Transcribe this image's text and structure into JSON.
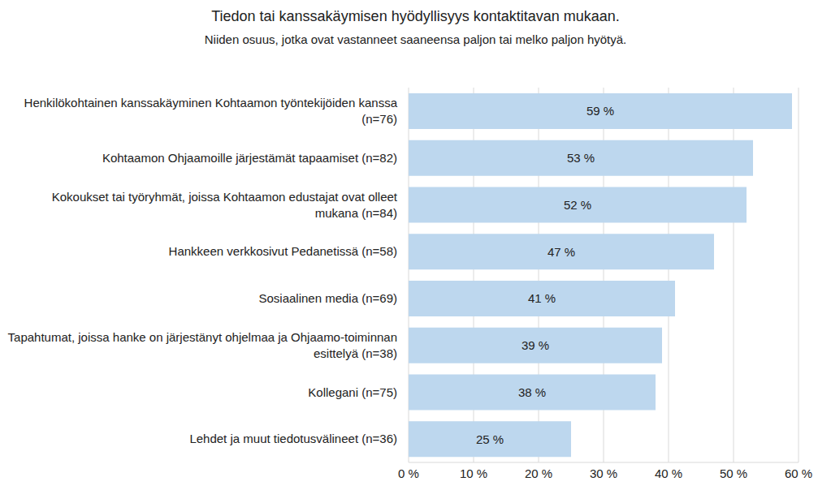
{
  "chart_data": {
    "type": "bar",
    "orientation": "horizontal",
    "title": "Tiedon tai kanssakäymisen hyödyllisyys kontaktitavan mukaan.",
    "subtitle": "Niiden osuus, jotka ovat vastanneet saaneensa paljon tai melko paljon hyötyä.",
    "categories": [
      "Henkilökohtainen kanssakäyminen Kohtaamon työntekijöiden kanssa (n=76)",
      "Kohtaamon Ohjaamoille järjestämät tapaamiset (n=82)",
      "Kokoukset tai työryhmät, joissa Kohtaamon edustajat ovat olleet mukana (n=84)",
      "Hankkeen verkkosivut Pedanetissä (n=58)",
      "Sosiaalinen media (n=69)",
      "Tapahtumat, joissa hanke on järjestänyt ohjelmaa ja Ohjaamo-toiminnan esittelyä (n=38)",
      "Kollegani (n=75)",
      "Lehdet ja muut tiedotusvälineet (n=36)"
    ],
    "values": [
      59,
      53,
      52,
      47,
      41,
      39,
      38,
      25
    ],
    "value_labels": [
      "59 %",
      "53 %",
      "52 %",
      "47 %",
      "41 %",
      "39 %",
      "38 %",
      "25 %"
    ],
    "color": "#bdd7ee",
    "xlim": [
      0,
      60
    ],
    "xticks": [
      {
        "value": 0,
        "label": "0 %"
      },
      {
        "value": 10,
        "label": "10 %"
      },
      {
        "value": 20,
        "label": "20 %"
      },
      {
        "value": 30,
        "label": "30 %"
      },
      {
        "value": 40,
        "label": "40 %"
      },
      {
        "value": 50,
        "label": "50 %"
      },
      {
        "value": 60,
        "label": "60 %"
      }
    ],
    "grid": true,
    "data_labels": true
  }
}
